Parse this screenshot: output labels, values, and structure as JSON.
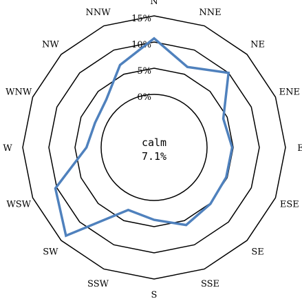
{
  "chart_data": {
    "type": "radar",
    "directions": [
      "N",
      "NNE",
      "NE",
      "ENE",
      "E",
      "ESE",
      "SE",
      "SSE",
      "S",
      "SSW",
      "SW",
      "WSW",
      "W",
      "WNW",
      "NW",
      "NNW"
    ],
    "radial_ticks": [
      "0%",
      "5%",
      "10%",
      "15%"
    ],
    "radial_tick_values": [
      0,
      5,
      10,
      15
    ],
    "calm_label": "calm",
    "calm_value": "7.1%",
    "series": [
      {
        "values": [
          10.7,
          6.5,
          10.0,
          4.2,
          4.8,
          4.8,
          5.1,
          5.9,
          3.7,
          2.8,
          13.7,
          10.3,
          2.8,
          2.1,
          2.8,
          6.9
        ],
        "color": "#4f81bd"
      }
    ],
    "grid": true,
    "rlim": [
      0,
      15
    ]
  }
}
